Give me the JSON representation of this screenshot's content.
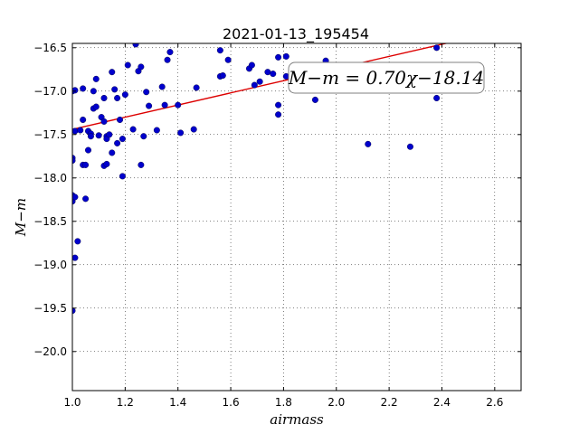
{
  "chart_data": {
    "type": "scatter",
    "title": "2021-01-13_195454",
    "xlabel": "airmass",
    "ylabel": "M−m",
    "xlim": [
      1.0,
      2.7
    ],
    "ylim": [
      -16.45,
      -20.45
    ],
    "y_inverted": true,
    "grid": true,
    "xticks": [
      1.0,
      1.2,
      1.4,
      1.6,
      1.8,
      2.0,
      2.2,
      2.4,
      2.6
    ],
    "xtick_labels": [
      "1.0",
      "1.2",
      "1.4",
      "1.6",
      "1.8",
      "2.0",
      "2.2",
      "2.4",
      "2.6"
    ],
    "yticks": [
      -16.5,
      -17.0,
      -17.5,
      -18.0,
      -18.5,
      -19.0,
      -19.5,
      -20.0
    ],
    "ytick_labels": [
      "−16.5",
      "−17.0",
      "−17.5",
      "−18.0",
      "−18.5",
      "−19.0",
      "−19.5",
      "−20.0"
    ],
    "annotation": "M−m = 0.70χ−18.14",
    "marker_color": "#0000cc",
    "fit_color": "#dd0000",
    "fit_line": {
      "slope": 0.7,
      "intercept": -18.14
    },
    "series": [
      {
        "points": [
          [
            1.0,
            -17.0
          ],
          [
            1.01,
            -16.99
          ],
          [
            1.01,
            -17.46
          ],
          [
            1.0,
            -17.77
          ],
          [
            1.0,
            -17.8
          ],
          [
            1.0,
            -18.27
          ],
          [
            1.0,
            -18.2
          ],
          [
            1.01,
            -18.22
          ],
          [
            1.01,
            -18.92
          ],
          [
            1.02,
            -18.73
          ],
          [
            1.0,
            -19.53
          ],
          [
            1.03,
            -17.45
          ],
          [
            1.04,
            -17.33
          ],
          [
            1.04,
            -16.97
          ],
          [
            1.04,
            -17.85
          ],
          [
            1.05,
            -17.85
          ],
          [
            1.05,
            -18.24
          ],
          [
            1.06,
            -17.46
          ],
          [
            1.06,
            -17.68
          ],
          [
            1.07,
            -17.49
          ],
          [
            1.07,
            -17.52
          ],
          [
            1.08,
            -17.0
          ],
          [
            1.08,
            -17.2
          ],
          [
            1.09,
            -17.18
          ],
          [
            1.09,
            -16.86
          ],
          [
            1.1,
            -17.51
          ],
          [
            1.11,
            -17.3
          ],
          [
            1.12,
            -17.35
          ],
          [
            1.12,
            -17.86
          ],
          [
            1.12,
            -17.08
          ],
          [
            1.13,
            -17.52
          ],
          [
            1.13,
            -17.55
          ],
          [
            1.13,
            -17.84
          ],
          [
            1.14,
            -17.5
          ],
          [
            1.15,
            -16.78
          ],
          [
            1.15,
            -17.71
          ],
          [
            1.16,
            -16.98
          ],
          [
            1.17,
            -17.6
          ],
          [
            1.17,
            -17.08
          ],
          [
            1.18,
            -17.33
          ],
          [
            1.19,
            -17.98
          ],
          [
            1.19,
            -17.55
          ],
          [
            1.2,
            -17.04
          ],
          [
            1.21,
            -16.7
          ],
          [
            1.23,
            -17.44
          ],
          [
            1.24,
            -16.46
          ],
          [
            1.25,
            -16.77
          ],
          [
            1.26,
            -17.85
          ],
          [
            1.26,
            -16.72
          ],
          [
            1.27,
            -17.52
          ],
          [
            1.28,
            -17.01
          ],
          [
            1.29,
            -17.17
          ],
          [
            1.32,
            -17.45
          ],
          [
            1.34,
            -16.95
          ],
          [
            1.35,
            -17.16
          ],
          [
            1.36,
            -16.64
          ],
          [
            1.37,
            -16.55
          ],
          [
            1.4,
            -17.16
          ],
          [
            1.41,
            -17.48
          ],
          [
            1.46,
            -17.44
          ],
          [
            1.47,
            -16.96
          ],
          [
            1.56,
            -16.53
          ],
          [
            1.56,
            -16.83
          ],
          [
            1.57,
            -16.82
          ],
          [
            1.59,
            -16.64
          ],
          [
            1.67,
            -16.74
          ],
          [
            1.68,
            -16.7
          ],
          [
            1.69,
            -16.93
          ],
          [
            1.71,
            -16.89
          ],
          [
            1.74,
            -16.78
          ],
          [
            1.76,
            -16.8
          ],
          [
            1.78,
            -17.16
          ],
          [
            1.78,
            -17.27
          ],
          [
            1.78,
            -16.61
          ],
          [
            1.81,
            -16.6
          ],
          [
            1.81,
            -16.83
          ],
          [
            1.92,
            -17.1
          ],
          [
            1.96,
            -16.65
          ],
          [
            2.12,
            -17.61
          ],
          [
            2.28,
            -17.64
          ],
          [
            2.38,
            -16.5
          ],
          [
            2.38,
            -17.08
          ]
        ]
      }
    ]
  }
}
